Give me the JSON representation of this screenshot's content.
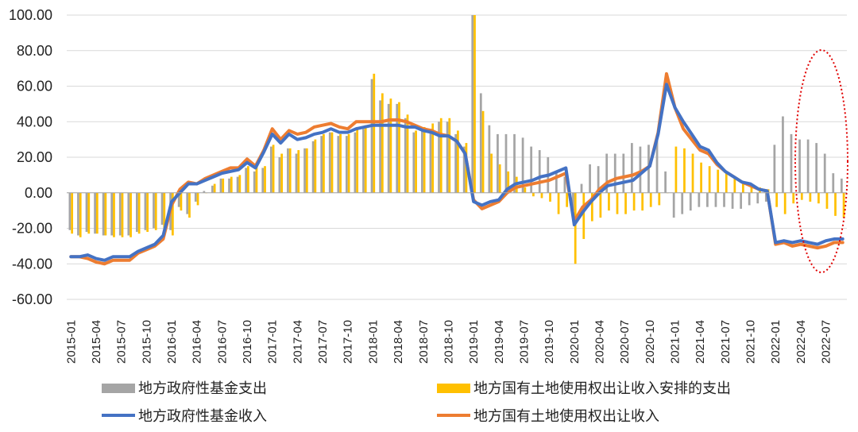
{
  "chart_data": {
    "type": "bar+line",
    "title": "",
    "xlabel": "",
    "ylabel": "",
    "ylim": [
      -60,
      100
    ],
    "yticks": [
      "100.00",
      "80.00",
      "60.00",
      "40.00",
      "20.00",
      "0.00",
      "-20.00",
      "-40.00",
      "-60.00"
    ],
    "ytick_values": [
      100,
      80,
      60,
      40,
      20,
      0,
      -20,
      -40,
      -60
    ],
    "x": [
      "2015-01",
      "2015-02",
      "2015-03",
      "2015-04",
      "2015-05",
      "2015-06",
      "2015-07",
      "2015-08",
      "2015-09",
      "2015-10",
      "2015-11",
      "2015-12",
      "2016-01",
      "2016-02",
      "2016-03",
      "2016-04",
      "2016-05",
      "2016-06",
      "2016-07",
      "2016-08",
      "2016-09",
      "2016-10",
      "2016-11",
      "2016-12",
      "2017-01",
      "2017-02",
      "2017-03",
      "2017-04",
      "2017-05",
      "2017-06",
      "2017-07",
      "2017-08",
      "2017-09",
      "2017-10",
      "2017-11",
      "2017-12",
      "2018-01",
      "2018-02",
      "2018-03",
      "2018-04",
      "2018-05",
      "2018-06",
      "2018-07",
      "2018-08",
      "2018-09",
      "2018-10",
      "2018-11",
      "2018-12",
      "2019-01",
      "2019-02",
      "2019-03",
      "2019-04",
      "2019-05",
      "2019-06",
      "2019-07",
      "2019-08",
      "2019-09",
      "2019-10",
      "2019-11",
      "2019-12",
      "2020-01",
      "2020-02",
      "2020-03",
      "2020-04",
      "2020-05",
      "2020-06",
      "2020-07",
      "2020-08",
      "2020-09",
      "2020-10",
      "2020-11",
      "2020-12",
      "2021-01",
      "2021-02",
      "2021-03",
      "2021-04",
      "2021-05",
      "2021-06",
      "2021-07",
      "2021-08",
      "2021-09",
      "2021-10",
      "2021-11",
      "2021-12",
      "2022-01",
      "2022-02",
      "2022-03",
      "2022-04",
      "2022-05",
      "2022-06",
      "2022-07",
      "2022-08",
      "2022-09"
    ],
    "x_tick_labels": [
      "2015-01",
      "2015-04",
      "2015-07",
      "2015-10",
      "2016-01",
      "2016-04",
      "2016-07",
      "2016-10",
      "2017-01",
      "2017-04",
      "2017-07",
      "2017-10",
      "2018-01",
      "2018-04",
      "2018-07",
      "2018-10",
      "2019-01",
      "2019-04",
      "2019-07",
      "2019-10",
      "2020-01",
      "2020-04",
      "2020-07",
      "2020-10",
      "2021-01",
      "2021-04",
      "2021-07",
      "2021-10",
      "2022-01",
      "2022-04",
      "2022-07"
    ],
    "series": [
      {
        "name": "地方政府性基金支出",
        "kind": "bar",
        "color": "#A5A5A5",
        "values": [
          -21,
          -24,
          -22,
          -23,
          -24,
          -24,
          -24,
          -24,
          -22,
          -21,
          -20,
          -18,
          -21,
          -8,
          -12,
          -5,
          1,
          4,
          8,
          8,
          9,
          14,
          12,
          14,
          26,
          20,
          25,
          22,
          25,
          29,
          32,
          34,
          32,
          32,
          34,
          36,
          64,
          52,
          50,
          50,
          42,
          34,
          36,
          36,
          40,
          40,
          33,
          26,
          100,
          56,
          38,
          33,
          33,
          33,
          31,
          26,
          24,
          20,
          12,
          9,
          -10,
          5,
          16,
          15,
          22,
          22,
          22,
          28,
          26,
          27,
          30,
          12,
          -14,
          -12,
          -10,
          -8,
          -8,
          -8,
          -8,
          -9,
          -9,
          -7,
          -6,
          -5,
          27,
          43,
          33,
          30,
          30,
          28,
          22,
          11,
          8
        ]
      },
      {
        "name": "地方国有土地使用权出让收入安排的支出",
        "kind": "bar",
        "color": "#FFC000",
        "values": [
          -23,
          -25,
          -23,
          -23,
          -24,
          -25,
          -25,
          -25,
          -23,
          -22,
          -21,
          -20,
          -24,
          -10,
          -14,
          -7,
          0,
          5,
          8,
          9,
          10,
          15,
          15,
          15,
          27,
          22,
          25,
          24,
          25,
          30,
          33,
          34,
          33,
          33,
          37,
          38,
          67,
          56,
          53,
          51,
          44,
          35,
          37,
          39,
          42,
          42,
          35,
          28,
          100,
          46,
          22,
          16,
          12,
          9,
          3,
          -2,
          -3,
          -5,
          -12,
          -8,
          -40,
          -26,
          -16,
          -14,
          -10,
          -12,
          -12,
          -10,
          -10,
          -8,
          -7,
          0,
          26,
          25,
          22,
          17,
          15,
          13,
          12,
          9,
          5,
          4,
          3,
          2,
          -8,
          -12,
          -6,
          -4,
          -5,
          -6,
          -9,
          -13,
          -14
        ]
      },
      {
        "name": "地方政府性基金收入",
        "kind": "line",
        "color": "#4472C4",
        "values": [
          -36,
          -36,
          -35,
          -37,
          -38,
          -36,
          -36,
          -36,
          -33,
          -31,
          -29,
          -24,
          -5,
          0,
          5,
          5,
          7,
          9,
          11,
          12,
          13,
          17,
          14,
          23,
          33,
          28,
          33,
          30,
          31,
          33,
          34,
          36,
          34,
          34,
          36,
          37,
          38,
          38,
          38,
          38,
          37,
          37,
          35,
          34,
          32,
          32,
          29,
          22,
          -5,
          -7,
          -5,
          -4,
          2,
          5,
          6,
          7,
          9,
          10,
          12,
          14,
          -18,
          -11,
          -5,
          0,
          4,
          5,
          6,
          7,
          11,
          15,
          33,
          61,
          48,
          40,
          33,
          26,
          24,
          17,
          12,
          9,
          6,
          5,
          2,
          1,
          -28,
          -27,
          -28,
          -27,
          -28,
          -29,
          -27,
          -26,
          -26
        ]
      },
      {
        "name": "地方国有土地使用权出让收入",
        "kind": "line",
        "color": "#ED7D31",
        "values": [
          -36,
          -36,
          -37,
          -39,
          -40,
          -38,
          -38,
          -38,
          -34,
          -32,
          -30,
          -26,
          -7,
          2,
          6,
          5,
          8,
          10,
          12,
          14,
          14,
          19,
          15,
          24,
          36,
          30,
          35,
          33,
          34,
          37,
          38,
          39,
          37,
          36,
          40,
          40,
          40,
          40,
          41,
          41,
          40,
          38,
          36,
          35,
          33,
          32,
          29,
          22,
          -4,
          -9,
          -7,
          -5,
          0,
          3,
          4,
          5,
          6,
          7,
          9,
          11,
          -16,
          -8,
          -4,
          2,
          6,
          8,
          9,
          10,
          12,
          15,
          34,
          67,
          48,
          36,
          30,
          24,
          22,
          16,
          12,
          9,
          6,
          4,
          2,
          1,
          -29,
          -28,
          -30,
          -29,
          -30,
          -31,
          -30,
          -28,
          -28
        ]
      }
    ],
    "legend_position": "bottom",
    "annotation": {
      "type": "dotted-ellipse",
      "color": "#E00000",
      "around": [
        "2022-01",
        "2022-09"
      ]
    },
    "grid": {
      "horizontal": true,
      "vertical": false
    }
  }
}
